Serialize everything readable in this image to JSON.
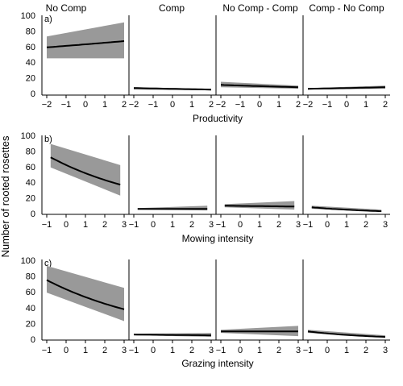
{
  "figure": {
    "ylabel": "Number of rooted rosettes",
    "facet_titles": [
      "No Comp",
      "Comp",
      "No Comp - Comp",
      "Comp - No Comp"
    ]
  },
  "chart_data": [
    {
      "type": "line",
      "tag": "a)",
      "xlabel": "Productivity",
      "ylabel": "Number of rooted rosettes",
      "ylim": [
        0,
        100
      ],
      "yticks": [
        0,
        20,
        40,
        60,
        80,
        100
      ],
      "xlim": [
        -2.25,
        2.25
      ],
      "xticks": [
        -2,
        -1,
        0,
        1,
        2
      ],
      "panels": [
        {
          "title": "No Comp",
          "x": [
            -2,
            2
          ],
          "fit": [
            59,
            67
          ],
          "lower": [
            45,
            45
          ],
          "upper": [
            73,
            91
          ]
        },
        {
          "title": "Comp",
          "x": [
            -2,
            2
          ],
          "fit": [
            7,
            5
          ],
          "lower": [
            5,
            4
          ],
          "upper": [
            8,
            6
          ]
        },
        {
          "title": "No Comp - Comp",
          "x": [
            -2,
            2
          ],
          "fit": [
            11,
            8
          ],
          "lower": [
            8,
            6
          ],
          "upper": [
            15,
            10
          ]
        },
        {
          "title": "Comp - No Comp",
          "x": [
            -2,
            2
          ],
          "fit": [
            6,
            8
          ],
          "lower": [
            5,
            6
          ],
          "upper": [
            7,
            10
          ]
        }
      ]
    },
    {
      "type": "line",
      "tag": "b)",
      "xlabel": "Mowing intensity",
      "ylabel": "Number of rooted rosettes",
      "ylim": [
        0,
        100
      ],
      "yticks": [
        0,
        20,
        40,
        60,
        80,
        100
      ],
      "xlim": [
        -1.25,
        3.25
      ],
      "xticks": [
        -1,
        0,
        1,
        2,
        3
      ],
      "panels": [
        {
          "title": "No Comp",
          "x": [
            -0.8,
            2.8
          ],
          "fit": [
            72,
            37
          ],
          "lower": [
            59,
            23
          ],
          "upper": [
            89,
            62
          ]
        },
        {
          "title": "Comp",
          "x": [
            -0.8,
            2.8
          ],
          "fit": [
            6,
            6
          ],
          "lower": [
            5,
            4
          ],
          "upper": [
            7,
            10
          ]
        },
        {
          "title": "No Comp - Comp",
          "x": [
            -0.8,
            2.8
          ],
          "fit": [
            10,
            9
          ],
          "lower": [
            8,
            5
          ],
          "upper": [
            12,
            16
          ]
        },
        {
          "title": "Comp - No Comp",
          "x": [
            -0.8,
            2.8
          ],
          "fit": [
            8,
            3
          ],
          "lower": [
            6,
            2
          ],
          "upper": [
            10,
            5
          ]
        }
      ]
    },
    {
      "type": "line",
      "tag": "c)",
      "xlabel": "Grazing intensity",
      "ylabel": "Number of rooted rosettes",
      "ylim": [
        0,
        100
      ],
      "yticks": [
        0,
        20,
        40,
        60,
        80,
        100
      ],
      "xlim": [
        -1.25,
        3.25
      ],
      "xticks": [
        -1,
        0,
        1,
        2,
        3
      ],
      "panels": [
        {
          "title": "No Comp",
          "x": [
            -1,
            3
          ],
          "fit": [
            75,
            38
          ],
          "lower": [
            59,
            23
          ],
          "upper": [
            93,
            65
          ]
        },
        {
          "title": "Comp",
          "x": [
            -1,
            3
          ],
          "fit": [
            6,
            5
          ],
          "lower": [
            5,
            3
          ],
          "upper": [
            7,
            8
          ]
        },
        {
          "title": "No Comp - Comp",
          "x": [
            -1,
            3
          ],
          "fit": [
            10,
            10
          ],
          "lower": [
            8,
            4
          ],
          "upper": [
            12,
            17
          ]
        },
        {
          "title": "Comp - No Comp",
          "x": [
            -1,
            3
          ],
          "fit": [
            10,
            3
          ],
          "lower": [
            8,
            2
          ],
          "upper": [
            12,
            5
          ]
        }
      ]
    }
  ]
}
